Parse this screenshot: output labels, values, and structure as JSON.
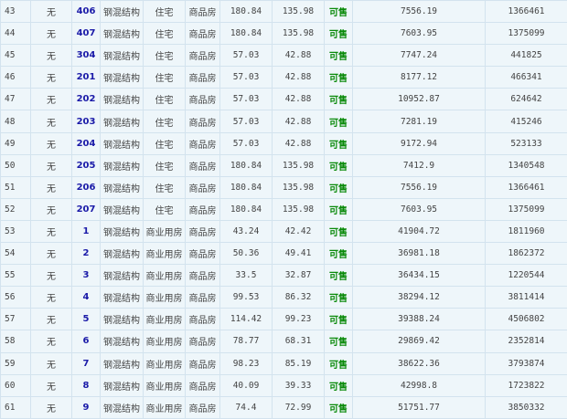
{
  "colors": {
    "cell_bg": "#eef6fa",
    "border": "#d3e3ee",
    "room_link": "#1a1aa8",
    "status_available": "#0a8a0a"
  },
  "rows": [
    {
      "no": "43",
      "unit": "无",
      "room": "406",
      "structure": "钢混结构",
      "use": "住宅",
      "type": "商品房",
      "area": "180.84",
      "inner_area": "135.98",
      "status": "可售",
      "price": "7556.19",
      "total": "1366461"
    },
    {
      "no": "44",
      "unit": "无",
      "room": "407",
      "structure": "钢混结构",
      "use": "住宅",
      "type": "商品房",
      "area": "180.84",
      "inner_area": "135.98",
      "status": "可售",
      "price": "7603.95",
      "total": "1375099"
    },
    {
      "no": "45",
      "unit": "无",
      "room": "304",
      "structure": "钢混结构",
      "use": "住宅",
      "type": "商品房",
      "area": "57.03",
      "inner_area": "42.88",
      "status": "可售",
      "price": "7747.24",
      "total": "441825"
    },
    {
      "no": "46",
      "unit": "无",
      "room": "201",
      "structure": "钢混结构",
      "use": "住宅",
      "type": "商品房",
      "area": "57.03",
      "inner_area": "42.88",
      "status": "可售",
      "price": "8177.12",
      "total": "466341"
    },
    {
      "no": "47",
      "unit": "无",
      "room": "202",
      "structure": "钢混结构",
      "use": "住宅",
      "type": "商品房",
      "area": "57.03",
      "inner_area": "42.88",
      "status": "可售",
      "price": "10952.87",
      "total": "624642"
    },
    {
      "no": "48",
      "unit": "无",
      "room": "203",
      "structure": "钢混结构",
      "use": "住宅",
      "type": "商品房",
      "area": "57.03",
      "inner_area": "42.88",
      "status": "可售",
      "price": "7281.19",
      "total": "415246"
    },
    {
      "no": "49",
      "unit": "无",
      "room": "204",
      "structure": "钢混结构",
      "use": "住宅",
      "type": "商品房",
      "area": "57.03",
      "inner_area": "42.88",
      "status": "可售",
      "price": "9172.94",
      "total": "523133"
    },
    {
      "no": "50",
      "unit": "无",
      "room": "205",
      "structure": "钢混结构",
      "use": "住宅",
      "type": "商品房",
      "area": "180.84",
      "inner_area": "135.98",
      "status": "可售",
      "price": "7412.9",
      "total": "1340548"
    },
    {
      "no": "51",
      "unit": "无",
      "room": "206",
      "structure": "钢混结构",
      "use": "住宅",
      "type": "商品房",
      "area": "180.84",
      "inner_area": "135.98",
      "status": "可售",
      "price": "7556.19",
      "total": "1366461"
    },
    {
      "no": "52",
      "unit": "无",
      "room": "207",
      "structure": "钢混结构",
      "use": "住宅",
      "type": "商品房",
      "area": "180.84",
      "inner_area": "135.98",
      "status": "可售",
      "price": "7603.95",
      "total": "1375099"
    },
    {
      "no": "53",
      "unit": "无",
      "room": "1",
      "structure": "钢混结构",
      "use": "商业用房",
      "type": "商品房",
      "area": "43.24",
      "inner_area": "42.42",
      "status": "可售",
      "price": "41904.72",
      "total": "1811960"
    },
    {
      "no": "54",
      "unit": "无",
      "room": "2",
      "structure": "钢混结构",
      "use": "商业用房",
      "type": "商品房",
      "area": "50.36",
      "inner_area": "49.41",
      "status": "可售",
      "price": "36981.18",
      "total": "1862372"
    },
    {
      "no": "55",
      "unit": "无",
      "room": "3",
      "structure": "钢混结构",
      "use": "商业用房",
      "type": "商品房",
      "area": "33.5",
      "inner_area": "32.87",
      "status": "可售",
      "price": "36434.15",
      "total": "1220544"
    },
    {
      "no": "56",
      "unit": "无",
      "room": "4",
      "structure": "钢混结构",
      "use": "商业用房",
      "type": "商品房",
      "area": "99.53",
      "inner_area": "86.32",
      "status": "可售",
      "price": "38294.12",
      "total": "3811414"
    },
    {
      "no": "57",
      "unit": "无",
      "room": "5",
      "structure": "钢混结构",
      "use": "商业用房",
      "type": "商品房",
      "area": "114.42",
      "inner_area": "99.23",
      "status": "可售",
      "price": "39388.24",
      "total": "4506802"
    },
    {
      "no": "58",
      "unit": "无",
      "room": "6",
      "structure": "钢混结构",
      "use": "商业用房",
      "type": "商品房",
      "area": "78.77",
      "inner_area": "68.31",
      "status": "可售",
      "price": "29869.42",
      "total": "2352814"
    },
    {
      "no": "59",
      "unit": "无",
      "room": "7",
      "structure": "钢混结构",
      "use": "商业用房",
      "type": "商品房",
      "area": "98.23",
      "inner_area": "85.19",
      "status": "可售",
      "price": "38622.36",
      "total": "3793874"
    },
    {
      "no": "60",
      "unit": "无",
      "room": "8",
      "structure": "钢混结构",
      "use": "商业用房",
      "type": "商品房",
      "area": "40.09",
      "inner_area": "39.33",
      "status": "可售",
      "price": "42998.8",
      "total": "1723822"
    },
    {
      "no": "61",
      "unit": "无",
      "room": "9",
      "structure": "钢混结构",
      "use": "商业用房",
      "type": "商品房",
      "area": "74.4",
      "inner_area": "72.99",
      "status": "可售",
      "price": "51751.77",
      "total": "3850332"
    }
  ]
}
